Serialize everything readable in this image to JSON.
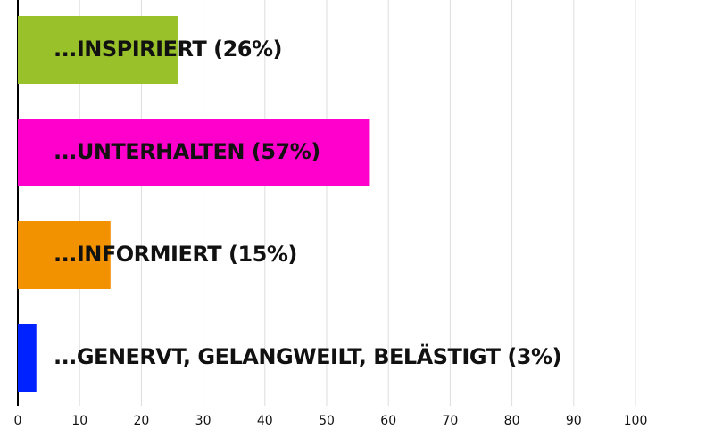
{
  "chart_data": {
    "type": "barh",
    "categories": [
      "...INSPIRIERT (26%)",
      "...UNTERHALTEN (57%)",
      "...INFORMIERT (15%)",
      "...GENERVT, GELANGWEILT, BELÄSTIGT (3%)"
    ],
    "values": [
      26,
      57,
      15,
      3
    ],
    "colors": [
      "#99c12a",
      "#ff00cc",
      "#f39200",
      "#0022ff"
    ],
    "xlim": [
      0,
      100
    ],
    "xticks": [
      0,
      10,
      20,
      30,
      40,
      50,
      60,
      70,
      80,
      90,
      100
    ],
    "grid": true
  }
}
